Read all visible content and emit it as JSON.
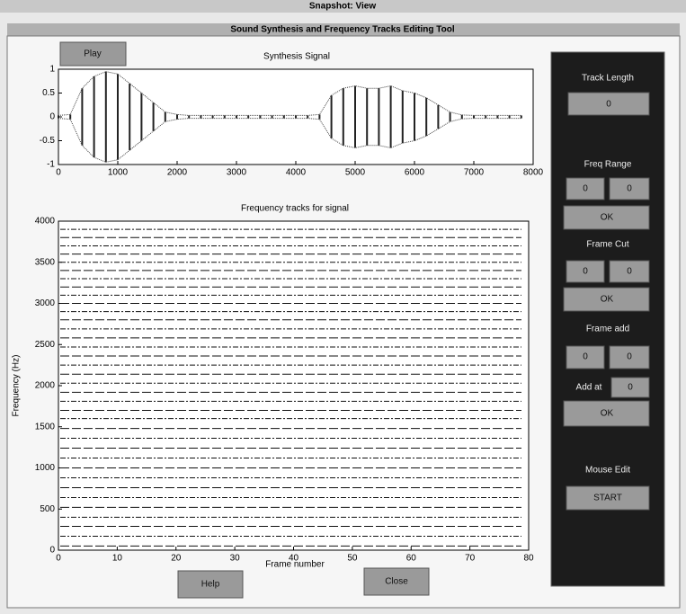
{
  "window": {
    "title": "Snapshot: View",
    "subtitle": "Sound Synthesis and Frequency Tracks Editing Tool"
  },
  "signal_plot": {
    "title": "Synthesis Signal",
    "play_button": "Play",
    "xlim": [
      0,
      8000
    ],
    "ylim": [
      -1,
      1
    ],
    "xticks": [
      0,
      1000,
      2000,
      3000,
      4000,
      5000,
      6000,
      7000,
      8000
    ],
    "yticks": [
      -1,
      -0.5,
      0,
      0.5,
      1
    ],
    "x": [
      0,
      200,
      400,
      600,
      800,
      1000,
      1200,
      1400,
      1600,
      1800,
      2000,
      2200,
      2400,
      2600,
      2800,
      3000,
      3200,
      3400,
      3600,
      3800,
      4000,
      4200,
      4400,
      4600,
      4800,
      5000,
      5200,
      5400,
      5600,
      5800,
      6000,
      6200,
      6400,
      6600,
      6800,
      7000,
      7200,
      7400,
      7600,
      7800
    ],
    "envelope": [
      0.03,
      0.05,
      0.6,
      0.85,
      0.95,
      0.9,
      0.7,
      0.5,
      0.3,
      0.1,
      0.05,
      0.03,
      0.03,
      0.03,
      0.03,
      0.03,
      0.03,
      0.03,
      0.03,
      0.03,
      0.03,
      0.03,
      0.05,
      0.45,
      0.6,
      0.65,
      0.6,
      0.6,
      0.65,
      0.55,
      0.5,
      0.4,
      0.25,
      0.1,
      0.04,
      0.03,
      0.03,
      0.03,
      0.03,
      0.03
    ]
  },
  "tracks_plot": {
    "title": "Frequency tracks for signal",
    "xlabel": "Frame number",
    "ylabel": "Frequency (Hz)",
    "xlim": [
      0,
      80
    ],
    "ylim": [
      0,
      4000
    ],
    "xticks": [
      0,
      10,
      20,
      30,
      40,
      50,
      60,
      70,
      80
    ],
    "yticks": [
      0,
      500,
      1000,
      1500,
      2000,
      2500,
      3000,
      3500,
      4000
    ],
    "track_frequencies": [
      50,
      170,
      290,
      400,
      520,
      640,
      760,
      880,
      1000,
      1120,
      1240,
      1360,
      1480,
      1600,
      1700,
      1810,
      1920,
      2030,
      2140,
      2250,
      2360,
      2470,
      2580,
      2690,
      2800,
      2900,
      3000,
      3100,
      3200,
      3300,
      3400,
      3500,
      3600,
      3700,
      3800,
      3900
    ]
  },
  "buttons": {
    "help": "Help",
    "close": "Close"
  },
  "panel": {
    "track_length": {
      "label": "Track Length",
      "value": "0"
    },
    "freq_range": {
      "label": "Freq Range",
      "low": "0",
      "high": "0",
      "ok": "OK"
    },
    "frame_cut": {
      "label": "Frame Cut",
      "low": "0",
      "high": "0",
      "ok": "OK"
    },
    "frame_add": {
      "label": "Frame add",
      "low": "0",
      "high": "0",
      "add_at_label": "Add at",
      "add_at": "0",
      "ok": "OK"
    },
    "mouse_edit": {
      "label": "Mouse Edit",
      "start": "START"
    }
  }
}
